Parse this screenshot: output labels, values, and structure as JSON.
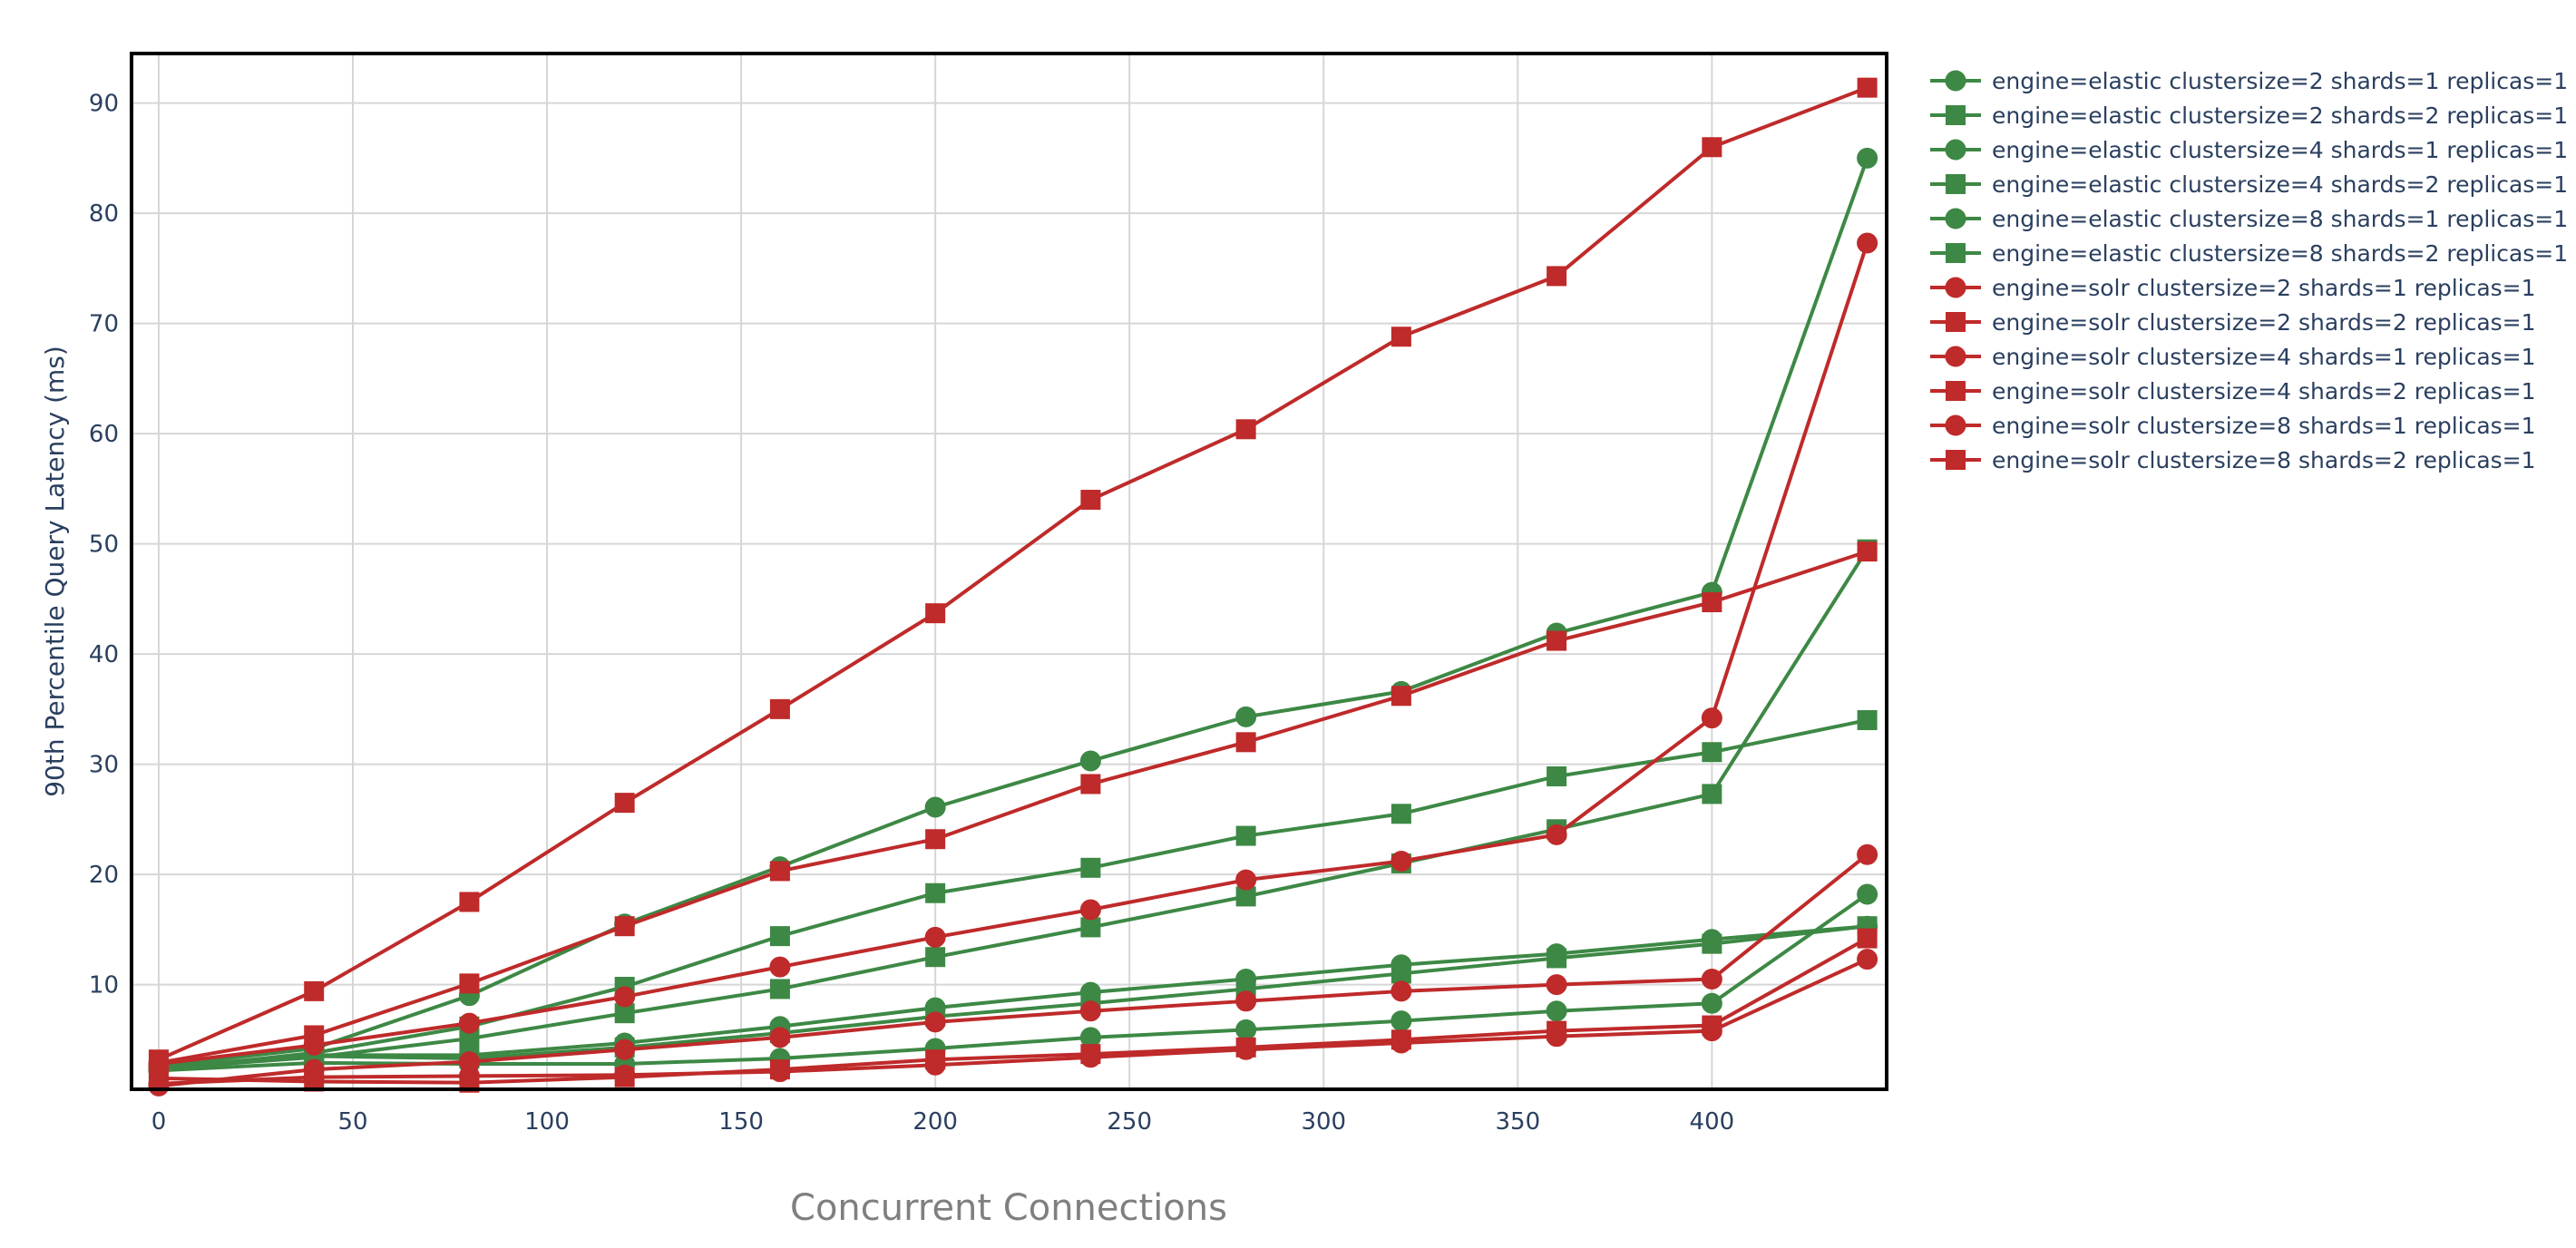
{
  "chart_data": {
    "type": "line",
    "title": "",
    "xlabel": "Concurrent Connections",
    "ylabel": "90th Percentile Query Latency (ms)",
    "xlim": [
      -7,
      445
    ],
    "ylim": [
      0.5,
      94.5
    ],
    "x_ticks": [
      0,
      50,
      100,
      150,
      200,
      250,
      300,
      350,
      400
    ],
    "y_ticks": [
      10,
      20,
      30,
      40,
      50,
      60,
      70,
      80,
      90
    ],
    "grid": true,
    "legend_position": "right",
    "x": [
      0,
      40,
      80,
      120,
      160,
      200,
      240,
      280,
      320,
      360,
      400,
      440
    ],
    "colors": {
      "elastic": "#3d8845",
      "solr": "#bf2a2a",
      "axis_text": "#2a3f5f",
      "title_text": "#7f7f7f",
      "grid": "#d6d6d6"
    },
    "series": [
      {
        "name": "engine=elastic clustersize=2 shards=1 replicas=1",
        "marker": "circle",
        "color": "#3d8845",
        "values": [
          2.6,
          4.2,
          9.0,
          15.5,
          20.7,
          26.1,
          30.3,
          34.3,
          36.6,
          41.9,
          45.6,
          85.0
        ]
      },
      {
        "name": "engine=elastic clustersize=2 shards=2 replicas=1",
        "marker": "square",
        "color": "#3d8845",
        "values": [
          2.3,
          3.8,
          6.2,
          9.8,
          14.4,
          18.3,
          20.6,
          23.5,
          25.5,
          28.9,
          31.1,
          34.0
        ]
      },
      {
        "name": "engine=elastic clustersize=4 shards=1 replicas=1",
        "marker": "circle",
        "color": "#3d8845",
        "values": [
          2.5,
          3.6,
          3.6,
          4.7,
          6.2,
          7.9,
          9.3,
          10.5,
          11.8,
          12.8,
          14.1,
          15.3
        ]
      },
      {
        "name": "engine=elastic clustersize=4 shards=2 replicas=1",
        "marker": "square",
        "color": "#3d8845",
        "values": [
          2.4,
          3.4,
          5.1,
          7.4,
          9.6,
          12.5,
          15.2,
          18.0,
          21.0,
          24.1,
          27.3,
          49.5
        ]
      },
      {
        "name": "engine=elastic clustersize=8 shards=1 replicas=1",
        "marker": "circle",
        "color": "#3d8845",
        "values": [
          2.2,
          2.9,
          2.8,
          2.8,
          3.3,
          4.2,
          5.2,
          5.9,
          6.7,
          7.6,
          8.3,
          18.2
        ]
      },
      {
        "name": "engine=elastic clustersize=8 shards=2 replicas=1",
        "marker": "square",
        "color": "#3d8845",
        "values": [
          2.3,
          3.5,
          3.3,
          4.3,
          5.6,
          7.1,
          8.3,
          9.6,
          11.0,
          12.4,
          13.7,
          15.3
        ]
      },
      {
        "name": "engine=solr clustersize=2 shards=1 replicas=1",
        "marker": "circle",
        "color": "#bf2a2a",
        "values": [
          2.8,
          4.5,
          6.5,
          8.9,
          11.6,
          14.3,
          16.8,
          19.5,
          21.2,
          23.6,
          34.2,
          77.3
        ]
      },
      {
        "name": "engine=solr clustersize=2 shards=2 replicas=1",
        "marker": "square",
        "color": "#bf2a2a",
        "values": [
          3.2,
          9.4,
          17.5,
          26.5,
          35.0,
          43.7,
          54.0,
          60.4,
          68.8,
          74.3,
          86.0,
          91.4
        ]
      },
      {
        "name": "engine=solr clustersize=4 shards=1 replicas=1",
        "marker": "circle",
        "color": "#bf2a2a",
        "values": [
          1.0,
          1.6,
          1.7,
          1.8,
          2.1,
          2.7,
          3.4,
          4.1,
          4.7,
          5.3,
          5.8,
          12.3
        ]
      },
      {
        "name": "engine=solr clustersize=4 shards=2 replicas=1",
        "marker": "square",
        "color": "#bf2a2a",
        "values": [
          2.9,
          5.4,
          10.1,
          15.3,
          20.3,
          23.2,
          28.2,
          32.0,
          36.2,
          41.2,
          44.7,
          49.3
        ]
      },
      {
        "name": "engine=solr clustersize=8 shards=1 replicas=1",
        "marker": "circle",
        "color": "#bf2a2a",
        "values": [
          0.8,
          2.3,
          3.0,
          4.1,
          5.2,
          6.6,
          7.6,
          8.5,
          9.4,
          10.0,
          10.5,
          21.8
        ]
      },
      {
        "name": "engine=solr clustersize=8 shards=2 replicas=1",
        "marker": "square",
        "color": "#bf2a2a",
        "values": [
          1.5,
          1.2,
          1.1,
          1.6,
          2.3,
          3.2,
          3.7,
          4.3,
          5.0,
          5.8,
          6.3,
          14.2
        ]
      }
    ]
  }
}
